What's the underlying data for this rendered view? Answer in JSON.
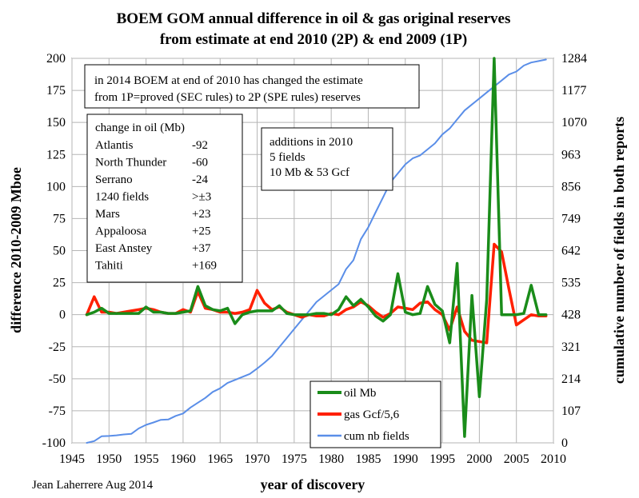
{
  "chart_data": {
    "type": "line",
    "title_line1": "BOEM GOM annual difference in oil & gas original reserves",
    "title_line2": "from estimate at end 2010 (2P) & end 2009 (1P)",
    "xlabel": "year of discovery",
    "ylabel_left": "difference 2010-2009 Mboe",
    "ylabel_right": "cumulative number of fields in both reports",
    "xlim": [
      1945,
      2010
    ],
    "ylim_left": [
      -100,
      200
    ],
    "ylim_right": [
      0,
      1284
    ],
    "x_ticks": [
      1945,
      1950,
      1955,
      1960,
      1965,
      1970,
      1975,
      1980,
      1985,
      1990,
      1995,
      2000,
      2005,
      2010
    ],
    "y_left_ticks": [
      -100,
      -75,
      -50,
      -25,
      0,
      25,
      50,
      75,
      100,
      125,
      150,
      175,
      200
    ],
    "y_right_ticks": [
      0,
      107,
      214,
      321,
      428,
      535,
      642,
      749,
      856,
      963,
      1070,
      1177,
      1284
    ],
    "grid": true,
    "series": [
      {
        "name": "oil Mb",
        "axis": "left",
        "color": "#1a8c1a",
        "x": [
          1947,
          1948,
          1949,
          1950,
          1951,
          1952,
          1953,
          1954,
          1955,
          1956,
          1957,
          1958,
          1959,
          1960,
          1961,
          1962,
          1963,
          1964,
          1965,
          1966,
          1967,
          1968,
          1969,
          1970,
          1971,
          1972,
          1973,
          1974,
          1975,
          1976,
          1977,
          1978,
          1979,
          1980,
          1981,
          1982,
          1983,
          1984,
          1985,
          1986,
          1987,
          1988,
          1989,
          1990,
          1991,
          1992,
          1993,
          1994,
          1995,
          1996,
          1997,
          1998,
          1999,
          2000,
          2001,
          2002,
          2003,
          2004,
          2005,
          2006,
          2007,
          2008,
          2009
        ],
        "values": [
          0,
          2,
          5,
          1,
          1,
          1,
          1,
          1,
          6,
          2,
          2,
          1,
          1,
          2,
          3,
          22,
          7,
          4,
          3,
          5,
          -7,
          0,
          2,
          3,
          3,
          3,
          7,
          1,
          0,
          0,
          0,
          1,
          1,
          0,
          4,
          14,
          7,
          12,
          6,
          -1,
          -5,
          0,
          32,
          2,
          0,
          1,
          22,
          8,
          3,
          -22,
          40,
          -95,
          15,
          -64,
          12,
          200,
          0,
          0,
          0,
          1,
          23,
          0,
          0
        ]
      },
      {
        "name": "gas Gcf/5,6",
        "axis": "left",
        "color": "#ff2000",
        "x": [
          1947,
          1948,
          1949,
          1950,
          1951,
          1952,
          1953,
          1954,
          1955,
          1956,
          1957,
          1958,
          1959,
          1960,
          1961,
          1962,
          1963,
          1964,
          1965,
          1966,
          1967,
          1968,
          1969,
          1970,
          1971,
          1972,
          1973,
          1974,
          1975,
          1976,
          1977,
          1978,
          1979,
          1980,
          1981,
          1982,
          1983,
          1984,
          1985,
          1986,
          1987,
          1988,
          1989,
          1990,
          1991,
          1992,
          1993,
          1994,
          1995,
          1996,
          1997,
          1998,
          1999,
          2000,
          2001,
          2002,
          2003,
          2004,
          2005,
          2006,
          2007,
          2008,
          2009
        ],
        "values": [
          0,
          14,
          2,
          2,
          1,
          2,
          3,
          4,
          5,
          4,
          2,
          1,
          1,
          4,
          2,
          18,
          5,
          4,
          2,
          2,
          1,
          2,
          4,
          19,
          9,
          4,
          6,
          2,
          0,
          -2,
          0,
          -1,
          -1,
          1,
          0,
          4,
          6,
          10,
          7,
          2,
          -2,
          1,
          6,
          5,
          4,
          9,
          10,
          4,
          0,
          -12,
          6,
          -13,
          -20,
          -21,
          -22,
          55,
          49,
          20,
          -8,
          -4,
          0,
          -1,
          -1
        ]
      },
      {
        "name": "cum nb fields",
        "axis": "right",
        "color": "#5a8ee8",
        "x": [
          1947,
          1948,
          1949,
          1950,
          1951,
          1952,
          1953,
          1954,
          1955,
          1956,
          1957,
          1958,
          1959,
          1960,
          1961,
          1962,
          1963,
          1964,
          1965,
          1966,
          1967,
          1968,
          1969,
          1970,
          1971,
          1972,
          1973,
          1974,
          1975,
          1976,
          1977,
          1978,
          1979,
          1980,
          1981,
          1982,
          1983,
          1984,
          1985,
          1986,
          1987,
          1988,
          1989,
          1990,
          1991,
          1992,
          1993,
          1994,
          1995,
          1996,
          1997,
          1998,
          1999,
          2000,
          2001,
          2002,
          2003,
          2004,
          2005,
          2006,
          2007,
          2008,
          2009
        ],
        "values": [
          0,
          6,
          22,
          23,
          25,
          28,
          30,
          48,
          60,
          68,
          77,
          78,
          90,
          98,
          118,
          134,
          150,
          170,
          182,
          200,
          210,
          220,
          230,
          248,
          268,
          290,
          320,
          350,
          380,
          410,
          440,
          470,
          490,
          510,
          530,
          580,
          610,
          680,
          720,
          770,
          820,
          870,
          900,
          930,
          950,
          960,
          980,
          1000,
          1030,
          1050,
          1080,
          1110,
          1130,
          1150,
          1170,
          1190,
          1210,
          1230,
          1240,
          1260,
          1270,
          1275,
          1280
        ]
      }
    ],
    "legend": {
      "position": "bottom-center",
      "items": [
        "oil Mb",
        "gas Gcf/5,6",
        "cum nb fields"
      ]
    },
    "annotations": {
      "top_box": [
        "in 2014 BOEM at end of 2010 has changed the estimate",
        "from 1P=proved (SEC rules) to 2P (SPE rules) reserves"
      ],
      "oil_box": {
        "header": "change in oil (Mb)",
        "rows": [
          {
            "name": "Atlantis",
            "value": "-92"
          },
          {
            "name": "North Thunder",
            "value": "-60"
          },
          {
            "name": "Serrano",
            "value": "-24"
          },
          {
            "name": "1240 fields",
            "value": ">±3"
          },
          {
            "name": "Mars",
            "value": "+23"
          },
          {
            "name": "Appaloosa",
            "value": "+25"
          },
          {
            "name": "East Anstey",
            "value": "+37"
          },
          {
            "name": "Tahiti",
            "value": "+169"
          }
        ]
      },
      "additions_box": [
        "additions in 2010",
        "5 fields",
        "10 Mb & 53 Gcf"
      ]
    },
    "credit": "Jean Laherrere Aug 2014"
  }
}
